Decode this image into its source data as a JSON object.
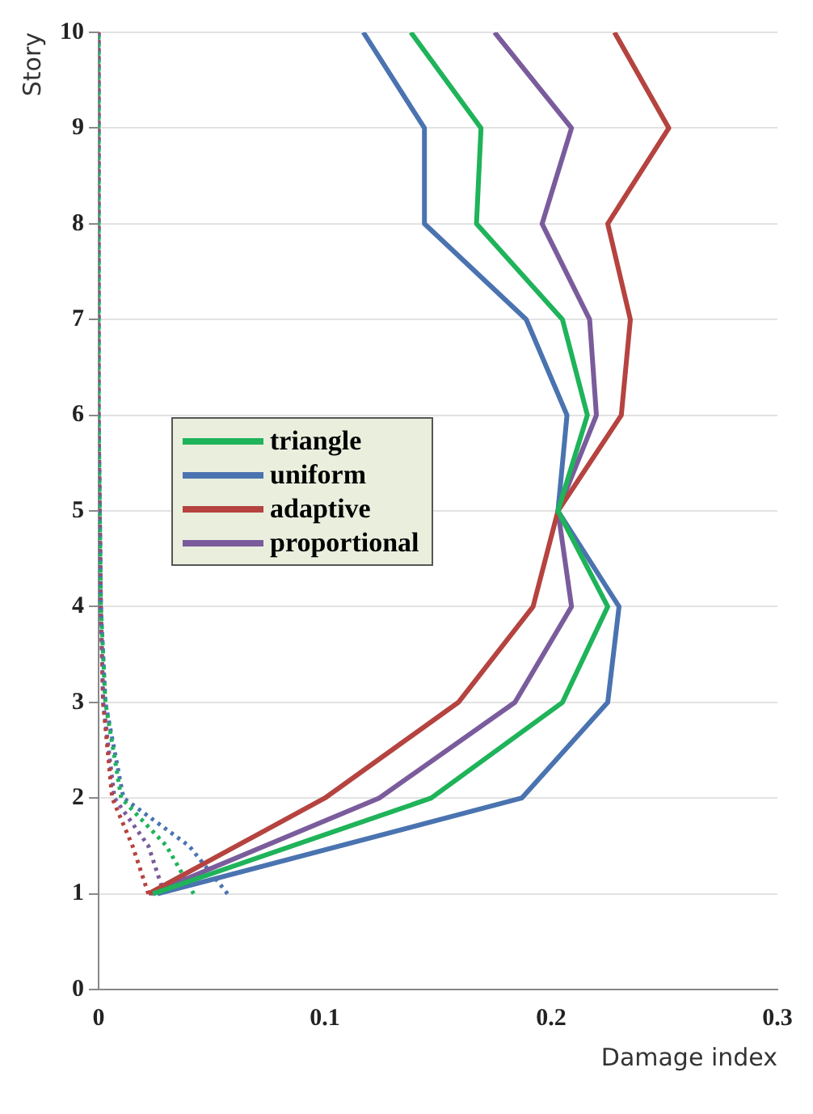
{
  "chart_data": {
    "type": "line",
    "xlabel": "Damage index",
    "ylabel": "Story",
    "xlim": [
      0,
      0.3
    ],
    "xticks": [
      0,
      0.1,
      0.2,
      0.3
    ],
    "ylim": [
      0,
      10
    ],
    "yticks": [
      0,
      1,
      2,
      3,
      4,
      5,
      6,
      7,
      8,
      9,
      10
    ],
    "grid": "y",
    "legend": "left",
    "marker": "none",
    "line_style": "solid",
    "series": [
      {
        "name": "triangle",
        "color": "#1fb35a",
        "x": [
          0.024,
          0.147,
          0.205,
          0.225,
          0.203,
          0.216,
          0.205,
          0.167,
          0.169,
          0.138
        ],
        "values": [
          1,
          2,
          3,
          4,
          5,
          6,
          7,
          8,
          9,
          10
        ]
      },
      {
        "name": "uniform",
        "color": "#4a73b0",
        "x": [
          0.026,
          0.187,
          0.225,
          0.23,
          0.203,
          0.207,
          0.189,
          0.144,
          0.144,
          0.117
        ],
        "values": [
          1,
          2,
          3,
          4,
          5,
          6,
          7,
          8,
          9,
          10
        ]
      },
      {
        "name": "adaptive",
        "color": "#b5433f",
        "x": [
          0.022,
          0.1,
          0.159,
          0.192,
          0.203,
          0.231,
          0.235,
          0.225,
          0.252,
          0.228
        ],
        "values": [
          1,
          2,
          3,
          4,
          5,
          6,
          7,
          8,
          9,
          10
        ]
      },
      {
        "name": "proportional",
        "color": "#7a5c9c",
        "x": [
          0.023,
          0.124,
          0.184,
          0.209,
          0.203,
          0.22,
          0.217,
          0.196,
          0.209,
          0.175
        ],
        "values": [
          1,
          2,
          3,
          4,
          5,
          6,
          7,
          8,
          9,
          10
        ]
      },
      {
        "type": "line",
        "line_style": "dotted",
        "color": "#1fb35a",
        "x": [
          0.042,
          0.03,
          0.01,
          0.003,
          0.001,
          0,
          0
        ],
        "values": [
          1,
          1.5,
          2,
          3,
          4,
          6,
          10
        ]
      },
      {
        "type": "line",
        "line_style": "dotted",
        "color": "#4a73b0",
        "x": [
          0.057,
          0.04,
          0.011,
          0.003,
          0.001,
          0,
          0
        ],
        "values": [
          1,
          1.5,
          2,
          3,
          4,
          6,
          10
        ]
      },
      {
        "type": "line",
        "line_style": "dotted",
        "color": "#b5433f",
        "x": [
          0.022,
          0.015,
          0.006,
          0.002,
          0.001,
          0,
          0
        ],
        "values": [
          1,
          1.5,
          2,
          3,
          4,
          6,
          10
        ]
      },
      {
        "type": "line",
        "line_style": "dotted",
        "color": "#7a5c9c",
        "x": [
          0.029,
          0.022,
          0.007,
          0.002,
          0.001,
          0,
          0
        ],
        "values": [
          1,
          1.5,
          2,
          3,
          4,
          6,
          10
        ]
      }
    ]
  }
}
